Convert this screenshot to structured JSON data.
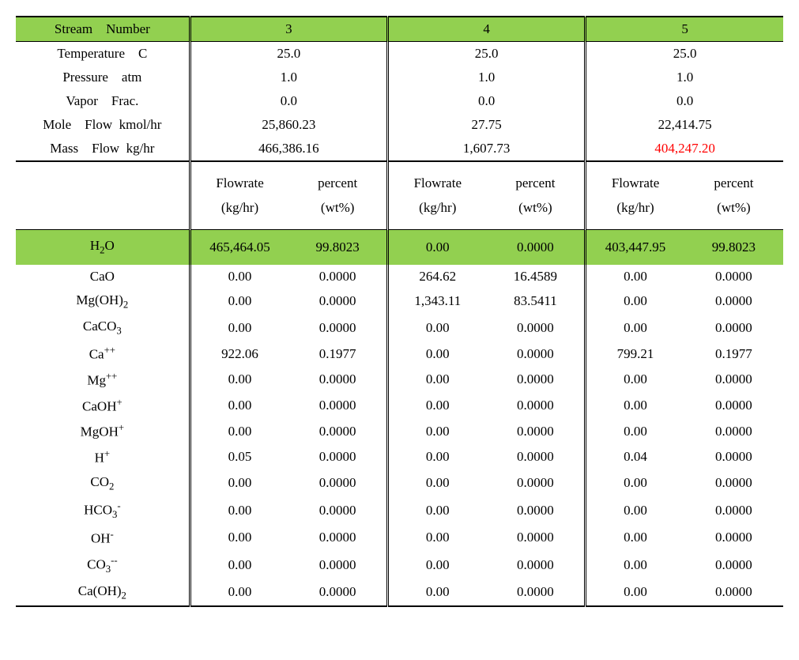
{
  "colors": {
    "header_bg": "#92d050",
    "highlight_bg": "#92d050",
    "text": "#000000",
    "red_text": "#ff0000",
    "border": "#000000",
    "background": "#ffffff"
  },
  "header": {
    "stream_number_label": "Stream Number",
    "streams": [
      "3",
      "4",
      "5"
    ]
  },
  "top_rows": [
    {
      "label": "Temperature C",
      "values": [
        "25.0",
        "25.0",
        "25.0"
      ]
    },
    {
      "label": "Pressure atm",
      "values": [
        "1.0",
        "1.0",
        "1.0"
      ]
    },
    {
      "label": "Vapor Frac.",
      "values": [
        "0.0",
        "0.0",
        "0.0"
      ]
    },
    {
      "label": "Mole Flow kmol/hr",
      "values": [
        "25,860.23",
        "27.75",
        "22,414.75"
      ]
    },
    {
      "label": "Mass Flow kg/hr",
      "values": [
        "466,386.16",
        "1,607.73",
        "404,247.20"
      ],
      "red_indices": [
        2
      ]
    }
  ],
  "subheader": {
    "flowrate_label": "Flowrate",
    "flowrate_unit": "(kg/hr)",
    "percent_label": "percent",
    "percent_unit": "(wt%)"
  },
  "highlight_row": {
    "label_html": "H<sub>2</sub>O",
    "values": [
      "465,464.05",
      "99.8023",
      "0.00",
      "0.0000",
      "403,447.95",
      "99.8023"
    ]
  },
  "data_rows": [
    {
      "label_html": "CaO",
      "values": [
        "0.00",
        "0.0000",
        "264.62",
        "16.4589",
        "0.00",
        "0.0000"
      ]
    },
    {
      "label_html": "Mg(OH)<sub>2</sub>",
      "values": [
        "0.00",
        "0.0000",
        "1,343.11",
        "83.5411",
        "0.00",
        "0.0000"
      ]
    },
    {
      "label_html": "CaCO<sub>3</sub>",
      "values": [
        "0.00",
        "0.0000",
        "0.00",
        "0.0000",
        "0.00",
        "0.0000"
      ]
    },
    {
      "label_html": "Ca<sup>++</sup>",
      "values": [
        "922.06",
        "0.1977",
        "0.00",
        "0.0000",
        "799.21",
        "0.1977"
      ]
    },
    {
      "label_html": "Mg<sup>++</sup>",
      "values": [
        "0.00",
        "0.0000",
        "0.00",
        "0.0000",
        "0.00",
        "0.0000"
      ]
    },
    {
      "label_html": "CaOH<sup>+</sup>",
      "values": [
        "0.00",
        "0.0000",
        "0.00",
        "0.0000",
        "0.00",
        "0.0000"
      ]
    },
    {
      "label_html": "MgOH<sup>+</sup>",
      "values": [
        "0.00",
        "0.0000",
        "0.00",
        "0.0000",
        "0.00",
        "0.0000"
      ]
    },
    {
      "label_html": "H<sup>+</sup>",
      "values": [
        "0.05",
        "0.0000",
        "0.00",
        "0.0000",
        "0.04",
        "0.0000"
      ]
    },
    {
      "label_html": "CO<sub>2</sub>",
      "values": [
        "0.00",
        "0.0000",
        "0.00",
        "0.0000",
        "0.00",
        "0.0000"
      ]
    },
    {
      "label_html": "HCO<sub>3</sub><sup>-</sup>",
      "values": [
        "0.00",
        "0.0000",
        "0.00",
        "0.0000",
        "0.00",
        "0.0000"
      ]
    },
    {
      "label_html": "OH<sup>-</sup>",
      "values": [
        "0.00",
        "0.0000",
        "0.00",
        "0.0000",
        "0.00",
        "0.0000"
      ]
    },
    {
      "label_html": "CO<sub>3</sub><sup>--</sup>",
      "values": [
        "0.00",
        "0.0000",
        "0.00",
        "0.0000",
        "0.00",
        "0.0000"
      ]
    },
    {
      "label_html": "Ca(OH)<sub>2</sub>",
      "values": [
        "0.00",
        "0.0000",
        "0.00",
        "0.0000",
        "0.00",
        "0.0000"
      ]
    }
  ]
}
